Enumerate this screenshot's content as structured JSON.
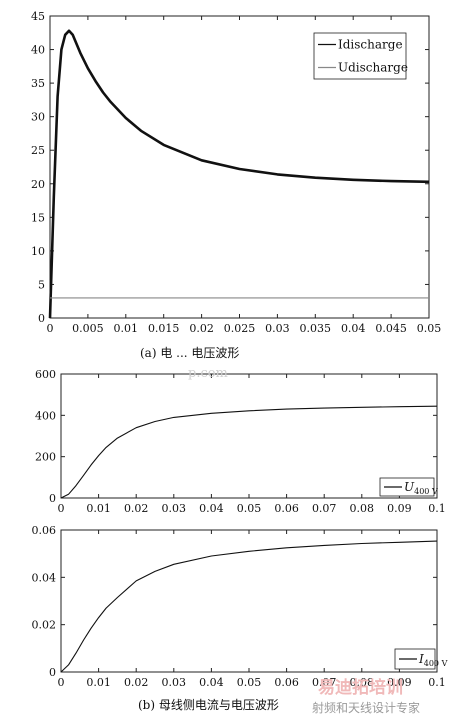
{
  "chart_data": [
    {
      "type": "line",
      "title": "",
      "xlabel": "",
      "ylabel": "",
      "xlim": [
        0,
        0.05
      ],
      "ylim": [
        0,
        45
      ],
      "x_ticks": [
        "0",
        "0.005",
        "0.01",
        "0.015",
        "0.02",
        "0.025",
        "0.03",
        "0.035",
        "0.04",
        "0.045",
        "0.05"
      ],
      "y_ticks": [
        "0",
        "5",
        "10",
        "15",
        "20",
        "25",
        "30",
        "35",
        "40",
        "45"
      ],
      "legend_position": "top-right",
      "caption": "(a) 电       ... 电压波形",
      "series": [
        {
          "name": "Idischarge",
          "color": "#111111",
          "x": [
            0,
            0.0005,
            0.001,
            0.0015,
            0.002,
            0.0025,
            0.003,
            0.004,
            0.005,
            0.006,
            0.007,
            0.008,
            0.01,
            0.012,
            0.015,
            0.02,
            0.025,
            0.03,
            0.035,
            0.04,
            0.045,
            0.05
          ],
          "values": [
            0,
            18,
            33,
            40,
            42.2,
            42.8,
            42.2,
            39.5,
            37.2,
            35.3,
            33.6,
            32.2,
            29.8,
            27.9,
            25.8,
            23.5,
            22.2,
            21.4,
            20.9,
            20.6,
            20.4,
            20.3
          ]
        },
        {
          "name": "Udischarge",
          "color": "#888888",
          "x": [
            0,
            0.05
          ],
          "values": [
            3,
            3
          ]
        }
      ]
    },
    {
      "type": "line",
      "title": "",
      "xlabel": "",
      "ylabel": "",
      "xlim": [
        0,
        0.1
      ],
      "ylim": [
        0,
        600
      ],
      "x_ticks": [
        "0",
        "0.01",
        "0.02",
        "0.03",
        "0.04",
        "0.05",
        "0.06",
        "0.07",
        "0.08",
        "0.09",
        "0.1"
      ],
      "y_ticks": [
        "0",
        "200",
        "400",
        "600"
      ],
      "legend_position": "bottom-right",
      "series": [
        {
          "name": "U",
          "legend_sub": "400 V",
          "color": "#111111",
          "x": [
            0,
            0.002,
            0.004,
            0.006,
            0.008,
            0.01,
            0.012,
            0.015,
            0.02,
            0.025,
            0.03,
            0.04,
            0.05,
            0.06,
            0.07,
            0.08,
            0.09,
            0.1
          ],
          "values": [
            0,
            18,
            60,
            110,
            160,
            205,
            245,
            290,
            340,
            370,
            390,
            410,
            422,
            430,
            435,
            439,
            442,
            444
          ]
        }
      ]
    },
    {
      "type": "line",
      "title": "",
      "xlabel": "",
      "ylabel": "",
      "xlim": [
        0,
        0.1
      ],
      "ylim": [
        0,
        0.06
      ],
      "x_ticks": [
        "0",
        "0.01",
        "0.02",
        "0.03",
        "0.04",
        "0.05",
        "0.06",
        "0.07",
        "0.08",
        "0.09",
        "0.1"
      ],
      "y_ticks": [
        "0",
        "0.02",
        "0.04",
        "0.06"
      ],
      "legend_position": "bottom-right",
      "caption": "(b) 母线侧电流与电压波形",
      "series": [
        {
          "name": "I",
          "legend_sub": "400 V",
          "color": "#111111",
          "x": [
            0,
            0.002,
            0.004,
            0.006,
            0.008,
            0.01,
            0.012,
            0.015,
            0.02,
            0.025,
            0.03,
            0.04,
            0.05,
            0.06,
            0.07,
            0.08,
            0.09,
            0.1
          ],
          "values": [
            0,
            0.003,
            0.008,
            0.0135,
            0.0185,
            0.023,
            0.027,
            0.0315,
            0.0385,
            0.0425,
            0.0455,
            0.049,
            0.051,
            0.0525,
            0.0535,
            0.0543,
            0.0548,
            0.0553
          ]
        }
      ]
    }
  ],
  "watermarks": {
    "overlay_1": "p.com",
    "brand": "易迪拓培训",
    "tagline": "射频和天线设计专家"
  }
}
